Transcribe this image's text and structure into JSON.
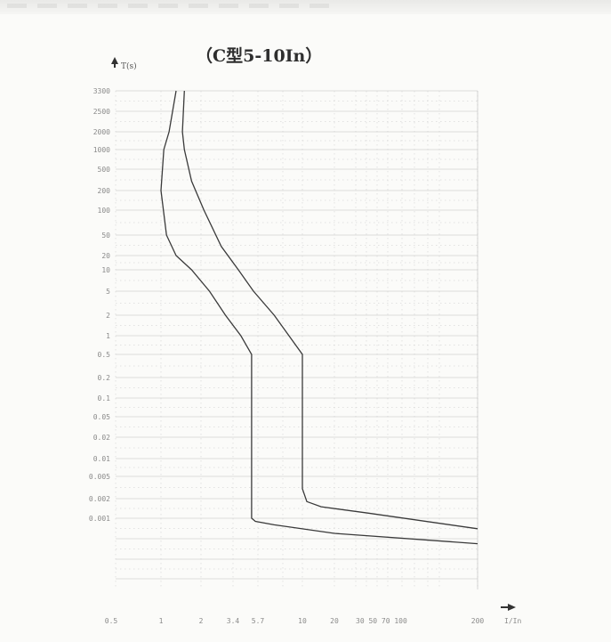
{
  "chart_data": {
    "type": "line",
    "title": "（C型5-10In）",
    "ylabel": "T(s)",
    "xlabel": "I/In",
    "y_scale": "log",
    "x_scale": "log",
    "grid": true,
    "y_tick_labels": [
      "3300",
      "2500",
      "2000",
      "1000",
      "500",
      "200",
      "100",
      "50",
      "20",
      "10",
      "5",
      "2",
      "1",
      "0.5",
      "0.2",
      "0.1",
      "0.05",
      "0.02",
      "0.01",
      "0.005",
      "0.002",
      "0.001"
    ],
    "x_tick_labels": [
      "0.5",
      "1",
      "2",
      "3.4",
      "5.7",
      "10",
      "20",
      "30 50 70 100",
      "200"
    ],
    "series": [
      {
        "values_x": [
          1.3,
          1.15,
          1.05,
          1.0,
          1.1,
          1.3,
          1.7,
          2.3,
          3.0,
          4.0,
          5.0,
          5.0,
          5.0,
          5.4,
          7.0,
          20,
          200
        ],
        "values_y": [
          3300,
          2000,
          1000,
          200,
          50,
          20,
          10,
          5,
          2,
          1,
          0.5,
          0.1,
          0.001,
          0.0009,
          0.0008,
          0.0006,
          0.0004
        ]
      },
      {
        "values_x": [
          1.5,
          1.45,
          1.5,
          1.7,
          2.1,
          2.8,
          3.8,
          5.2,
          7.0,
          10,
          10,
          10,
          11,
          15,
          40,
          200
        ],
        "values_y": [
          3300,
          2000,
          1000,
          300,
          100,
          30,
          10,
          5,
          2,
          0.5,
          0.1,
          0.003,
          0.0018,
          0.0015,
          0.0012,
          0.0007
        ]
      }
    ]
  }
}
